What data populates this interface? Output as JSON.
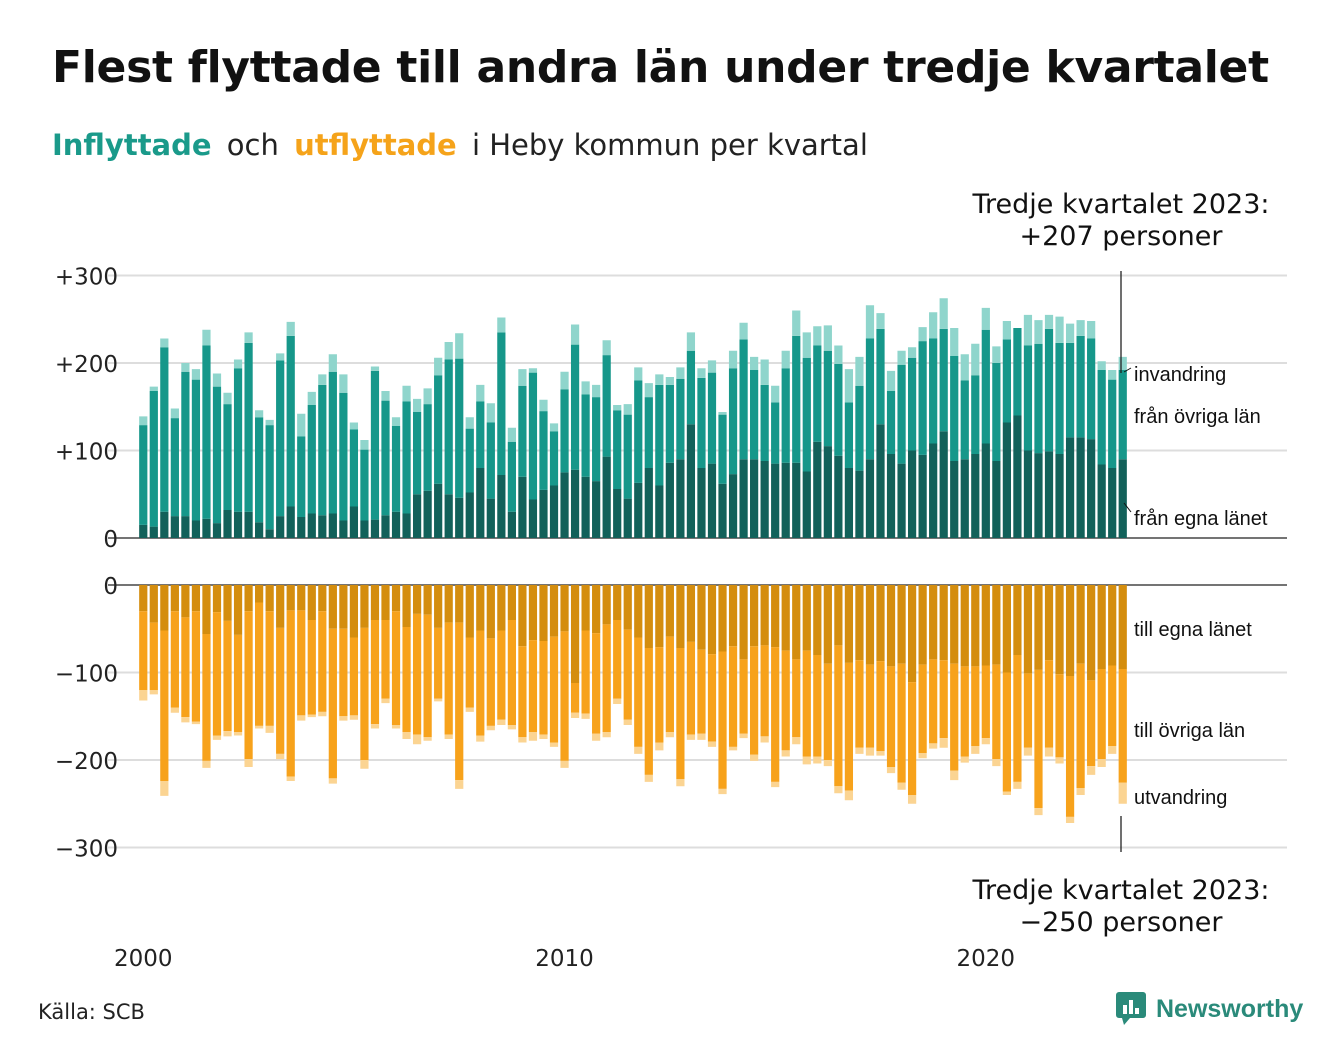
{
  "title": "Flest flyttade till andra län under tredje kvartalet",
  "subtitle": {
    "part1": "Inflyttade",
    "part2": "och",
    "part3": "utflyttade",
    "part4": "i Heby kommun per kvartal"
  },
  "colors": {
    "in_egna": "#12615a",
    "in_ovriga": "#16978a",
    "in_invandring": "#8fd5cc",
    "out_egna": "#d48d0e",
    "out_ovriga": "#f7a21b",
    "out_utvandring": "#fbd492",
    "grid": "#dddddd",
    "subtitle_in": "#1a9a8a",
    "subtitle_out": "#f5a31a",
    "brand": "#2a8a7a"
  },
  "source": "Källa: SCB",
  "brand": "Newsworthy",
  "brand_icon": "newsworthy-logo-icon",
  "chart_data": {
    "type": "bar",
    "stacked": true,
    "x_start": "2000 Q1",
    "x_end": "2023 Q3",
    "x_ticks": [
      "2000",
      "2010",
      "2020"
    ],
    "top_panel": {
      "y_ticks": [
        "+300",
        "+200",
        "+100",
        "0"
      ],
      "ylim": [
        0,
        300
      ],
      "series": [
        {
          "name": "från egna länet",
          "values": [
            15,
            13,
            30,
            25,
            25,
            20,
            22,
            17,
            32,
            30,
            30,
            18,
            10,
            25,
            36,
            24,
            28,
            26,
            28,
            20,
            36,
            20,
            21,
            26,
            30,
            28,
            50,
            54,
            62,
            50,
            46,
            52,
            80,
            45,
            72,
            30,
            70,
            44,
            55,
            60,
            75,
            78,
            70,
            65,
            93,
            56,
            45,
            63,
            80,
            60,
            86,
            90,
            130,
            80,
            85,
            62,
            73,
            90,
            90,
            88,
            85,
            86,
            86,
            76,
            110,
            105,
            94,
            80,
            77,
            90,
            130,
            96,
            85,
            100,
            95,
            108,
            122,
            88,
            90,
            96,
            108,
            88,
            132,
            140,
            100,
            97,
            99,
            96,
            115,
            115,
            113,
            84,
            80,
            90
          ]
        },
        {
          "name": "från övriga län",
          "values": [
            114,
            155,
            188,
            112,
            165,
            161,
            198,
            156,
            121,
            164,
            193,
            120,
            119,
            178,
            195,
            92,
            124,
            149,
            162,
            146,
            88,
            81,
            170,
            131,
            98,
            128,
            94,
            99,
            124,
            154,
            159,
            73,
            76,
            87,
            163,
            80,
            104,
            145,
            90,
            62,
            95,
            143,
            94,
            96,
            116,
            90,
            96,
            117,
            81,
            115,
            89,
            92,
            84,
            103,
            104,
            79,
            121,
            137,
            102,
            87,
            70,
            108,
            145,
            130,
            110,
            109,
            105,
            75,
            97,
            138,
            109,
            72,
            113,
            106,
            130,
            120,
            117,
            120,
            90,
            90,
            130,
            112,
            95,
            100,
            120,
            125,
            140,
            127,
            108,
            116,
            115,
            108,
            101,
            102
          ]
        },
        {
          "name": "invandring",
          "values": [
            10,
            5,
            10,
            11,
            10,
            12,
            18,
            15,
            13,
            10,
            12,
            8,
            6,
            8,
            16,
            26,
            15,
            12,
            20,
            21,
            8,
            11,
            5,
            11,
            10,
            18,
            15,
            18,
            20,
            20,
            29,
            13,
            19,
            22,
            17,
            16,
            19,
            5,
            13,
            9,
            20,
            23,
            15,
            14,
            17,
            6,
            12,
            15,
            16,
            12,
            9,
            13,
            21,
            11,
            14,
            3,
            20,
            19,
            15,
            29,
            19,
            20,
            29,
            29,
            22,
            29,
            21,
            38,
            33,
            38,
            18,
            23,
            16,
            12,
            16,
            30,
            35,
            32,
            30,
            36,
            25,
            19,
            21,
            0,
            35,
            27,
            16,
            30,
            22,
            18,
            20,
            10,
            11,
            15
          ]
        }
      ],
      "series_labels": [
        "invandring",
        "från övriga län",
        "från egna länet"
      ]
    },
    "bottom_panel": {
      "y_ticks": [
        "0",
        "−100",
        "−200",
        "−300"
      ],
      "ylim": [
        -300,
        0
      ],
      "series": [
        {
          "name": "till egna länet",
          "values": [
            -30,
            -43,
            -52,
            -30,
            -37,
            -30,
            -56,
            -31,
            -41,
            -57,
            -30,
            -20,
            -30,
            -49,
            -29,
            -29,
            -40,
            -30,
            -50,
            -50,
            -60,
            -49,
            -40,
            -40,
            -30,
            -48,
            -33,
            -34,
            -49,
            -43,
            -43,
            -60,
            -52,
            -61,
            -52,
            -40,
            -70,
            -63,
            -64,
            -59,
            -53,
            -112,
            -52,
            -55,
            -45,
            -40,
            -51,
            -60,
            -72,
            -71,
            -59,
            -72,
            -65,
            -74,
            -79,
            -76,
            -70,
            -85,
            -70,
            -69,
            -71,
            -75,
            -85,
            -75,
            -80,
            -90,
            -69,
            -89,
            -86,
            -91,
            -87,
            -93,
            -90,
            -111,
            -91,
            -85,
            -86,
            -90,
            -93,
            -93,
            -92,
            -91,
            -100,
            -80,
            -101,
            -97,
            -86,
            -102,
            -104,
            -90,
            -109,
            -96,
            -92,
            -96
          ]
        },
        {
          "name": "till övriga län",
          "values": [
            -90,
            -77,
            -172,
            -110,
            -114,
            -126,
            -145,
            -141,
            -126,
            -111,
            -169,
            -141,
            -131,
            -144,
            -190,
            -120,
            -108,
            -115,
            -171,
            -100,
            -89,
            -151,
            -119,
            -90,
            -130,
            -120,
            -138,
            -140,
            -81,
            -128,
            -180,
            -80,
            -120,
            -100,
            -102,
            -120,
            -104,
            -105,
            -107,
            -121,
            -148,
            -34,
            -95,
            -115,
            -123,
            -90,
            -103,
            -125,
            -145,
            -109,
            -109,
            -150,
            -106,
            -96,
            -100,
            -157,
            -115,
            -85,
            -124,
            -104,
            -154,
            -114,
            -89,
            -121,
            -116,
            -110,
            -161,
            -146,
            -100,
            -95,
            -103,
            -115,
            -136,
            -129,
            -101,
            -96,
            -89,
            -122,
            -103,
            -91,
            -83,
            -108,
            -136,
            -145,
            -85,
            -158,
            -100,
            -95,
            -161,
            -142,
            -98,
            -103,
            -92,
            -130
          ]
        },
        {
          "name": "utvandring",
          "values": [
            -12,
            -5,
            -17,
            -6,
            -6,
            -3,
            -8,
            -5,
            -6,
            -4,
            -9,
            -3,
            -8,
            -6,
            -5,
            -6,
            -3,
            -5,
            -6,
            -5,
            -5,
            -10,
            -5,
            -5,
            -4,
            -8,
            -11,
            -4,
            -3,
            -5,
            -10,
            -5,
            -7,
            -5,
            -6,
            -5,
            -6,
            -10,
            -5,
            -5,
            -8,
            -6,
            -6,
            -8,
            -6,
            -6,
            -6,
            -8,
            -8,
            -9,
            -6,
            -8,
            -6,
            -7,
            -6,
            -6,
            -4,
            -5,
            -7,
            -7,
            -6,
            -7,
            -8,
            -9,
            -8,
            -7,
            -8,
            -11,
            -7,
            -9,
            -5,
            -7,
            -8,
            -10,
            -6,
            -6,
            -11,
            -11,
            -7,
            -9,
            -7,
            -8,
            -4,
            -8,
            -9,
            -8,
            -10,
            -7,
            -7,
            -8,
            -10,
            -9,
            -9,
            -24
          ]
        }
      ],
      "series_labels": [
        "till egna länet",
        "till övriga län",
        "utvandring"
      ]
    },
    "annotation_top": {
      "line1": "Tredje kvartalet 2023:",
      "line2": "+207 personer"
    },
    "annotation_bottom": {
      "line1": "Tredje kvartalet 2023:",
      "line2": "−250 personer"
    }
  }
}
